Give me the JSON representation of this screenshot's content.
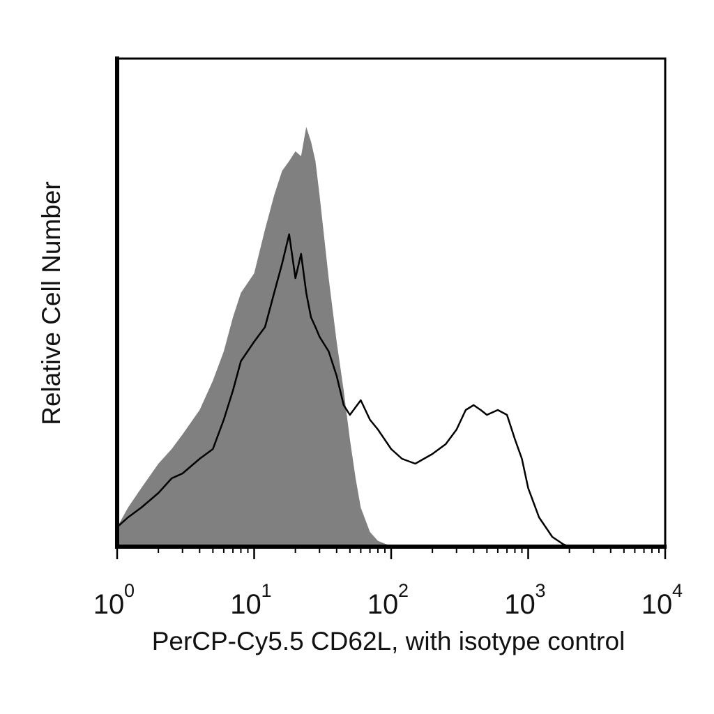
{
  "chart_data": {
    "type": "area",
    "xlabel": "PerCP-Cy5.5 CD62L, with isotype control",
    "ylabel": "Relative Cell Number",
    "x_scale": "log",
    "xlim": [
      1,
      10000
    ],
    "ylim": [
      0,
      1
    ],
    "grid": false,
    "x_ticks": [
      {
        "base": "10",
        "exp": "0"
      },
      {
        "base": "10",
        "exp": "1"
      },
      {
        "base": "10",
        "exp": "2"
      },
      {
        "base": "10",
        "exp": "3"
      },
      {
        "base": "10",
        "exp": "4"
      }
    ],
    "series": [
      {
        "style": "filled",
        "color": "#808080",
        "x": [
          1.0,
          1.2,
          1.5,
          2.0,
          2.5,
          3.0,
          4.0,
          5.0,
          6.0,
          7.0,
          8.0,
          10,
          12,
          14,
          16,
          18,
          20,
          22,
          24,
          26,
          28,
          30,
          35,
          40,
          45,
          50,
          55,
          60,
          70,
          80,
          90,
          100,
          110
        ],
        "y": [
          0.04,
          0.08,
          0.12,
          0.17,
          0.2,
          0.23,
          0.28,
          0.34,
          0.4,
          0.47,
          0.52,
          0.56,
          0.65,
          0.72,
          0.77,
          0.79,
          0.81,
          0.8,
          0.86,
          0.83,
          0.79,
          0.72,
          0.55,
          0.42,
          0.32,
          0.22,
          0.14,
          0.08,
          0.03,
          0.012,
          0.006,
          0.002,
          0.0
        ]
      },
      {
        "style": "line",
        "color": "#000000",
        "x": [
          1.0,
          1.2,
          1.5,
          2.0,
          2.5,
          3.0,
          4.0,
          5.0,
          6.0,
          7.0,
          8.0,
          10,
          12,
          14,
          16,
          18,
          20,
          22,
          24,
          26,
          28,
          30,
          35,
          40,
          45,
          50,
          60,
          70,
          80,
          100,
          120,
          150,
          200,
          250,
          300,
          350,
          400,
          450,
          500,
          600,
          700,
          800,
          900,
          1000,
          1200,
          1500,
          1800,
          2000
        ],
        "y": [
          0.04,
          0.06,
          0.08,
          0.11,
          0.14,
          0.15,
          0.18,
          0.2,
          0.26,
          0.32,
          0.38,
          0.42,
          0.45,
          0.52,
          0.58,
          0.64,
          0.55,
          0.6,
          0.52,
          0.47,
          0.45,
          0.43,
          0.4,
          0.35,
          0.29,
          0.27,
          0.3,
          0.26,
          0.24,
          0.2,
          0.18,
          0.17,
          0.19,
          0.21,
          0.24,
          0.28,
          0.29,
          0.28,
          0.27,
          0.28,
          0.27,
          0.22,
          0.18,
          0.12,
          0.06,
          0.02,
          0.005,
          0.0
        ]
      }
    ]
  }
}
